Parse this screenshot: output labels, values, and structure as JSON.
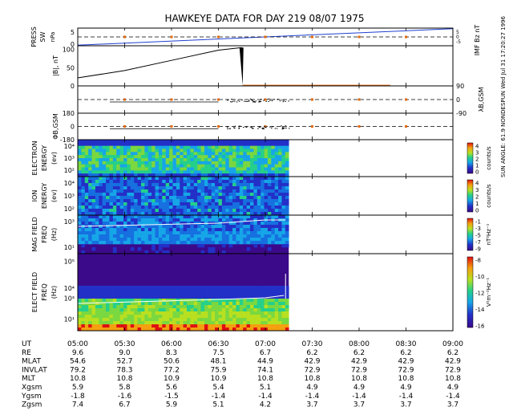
{
  "title": "HAWKEYE DATA FOR DAY 219 08/07 1975",
  "side_text": "SUN ANGLE: 61.9 NONDESPUN    Wed Jul 31 17:20:27 1996",
  "colors": {
    "press": "#1f3fd0",
    "imf": "#e06a10",
    "line": "#000000",
    "spec_bg": "#3b0a8a"
  },
  "panels": [
    {
      "id": "press",
      "left_label_lines": [
        "PRESS",
        "SW"
      ],
      "left_unit": "nPa",
      "right_label_lines": [
        "IMF Bz nT"
      ],
      "right_ticks": [
        "5",
        "0",
        "-5"
      ],
      "yticks": [
        "5",
        "0"
      ],
      "ylim": [
        0,
        6
      ]
    },
    {
      "id": "ibi",
      "left_label_lines": [
        "|B|, nT"
      ],
      "yticks": [
        "100",
        "50",
        "0"
      ],
      "ylim": [
        0,
        110
      ]
    },
    {
      "id": "lambda",
      "right_label_lines": [
        "λB,GSM"
      ],
      "right_ticks": [
        "90",
        "0",
        "-90"
      ],
      "ylim": [
        -90,
        90
      ]
    },
    {
      "id": "phi",
      "left_label_lines": [
        "ΦB,GSM"
      ],
      "yticks": [
        "180",
        "0",
        "-180"
      ],
      "ylim": [
        -180,
        180
      ]
    },
    {
      "id": "electron",
      "left_label_lines": [
        "ELECTRON",
        "ENERGY",
        "(ev)"
      ],
      "yticks": [
        "10⁴",
        "10³",
        "10²"
      ],
      "cbar_ticks": [
        "4",
        "3",
        "2",
        "1",
        "0"
      ],
      "cbar_unit": "counts/s"
    },
    {
      "id": "ion",
      "left_label_lines": [
        "ION",
        "ENERGY",
        "(ev)"
      ],
      "yticks": [
        "10⁴",
        "10³",
        "10²"
      ],
      "cbar_ticks": [
        "4",
        "3",
        "2",
        "1",
        "0"
      ],
      "cbar_unit": "counts/s"
    },
    {
      "id": "mag",
      "left_label_lines": [
        "MAG FIELD",
        "FREQ",
        "(Hz)"
      ],
      "yticks": [
        "10³",
        "10¹"
      ],
      "cbar_ticks": [
        "-1",
        "-3",
        "-5",
        "-7",
        "-9"
      ],
      "cbar_unit": "nT²Hz⁻¹"
    },
    {
      "id": "elect",
      "left_label_lines": [
        "ELECT FIELD",
        "FREQ",
        "(Hz)"
      ],
      "yticks": [
        "10⁵",
        "10⁴",
        "10³",
        "10¹"
      ],
      "cbar_ticks": [
        "-8",
        "-10",
        "-12",
        "-14",
        "-16"
      ],
      "cbar_unit": "V²m⁻²Hz⁻¹"
    }
  ],
  "chart_data": {
    "type": "table",
    "x_label": "UT",
    "x": [
      "05:00",
      "05:30",
      "06:00",
      "06:30",
      "07:00",
      "07:30",
      "08:00",
      "08:30",
      "09:00"
    ],
    "ephemeris": [
      {
        "label": "RE",
        "values": [
          "9.6",
          "9.0",
          "8.3",
          "7.5",
          "6.7",
          "6.2",
          "6.2",
          "6.2",
          "6.2"
        ]
      },
      {
        "label": "MLAT",
        "values": [
          "54.6",
          "52.7",
          "50.6",
          "48.1",
          "44.9",
          "42.9",
          "42.9",
          "42.9",
          "42.9"
        ]
      },
      {
        "label": "INVLAT",
        "values": [
          "79.2",
          "78.3",
          "77.2",
          "75.9",
          "74.1",
          "72.9",
          "72.9",
          "72.9",
          "72.9"
        ]
      },
      {
        "label": "MLT",
        "values": [
          "10.8",
          "10.8",
          "10.9",
          "10.9",
          "10.8",
          "10.8",
          "10.8",
          "10.8",
          "10.8"
        ]
      },
      {
        "label": "Xgsm",
        "values": [
          "5.9",
          "5.8",
          "5.6",
          "5.4",
          "5.1",
          "4.9",
          "4.9",
          "4.9",
          "4.9"
        ]
      },
      {
        "label": "Ygsm",
        "values": [
          "-1.8",
          "-1.6",
          "-1.5",
          "-1.4",
          "-1.4",
          "-1.4",
          "-1.4",
          "-1.4",
          "-1.4"
        ]
      },
      {
        "label": "Zgsm",
        "values": [
          "7.4",
          "6.7",
          "5.9",
          "5.1",
          "4.2",
          "3.7",
          "3.7",
          "3.7",
          "3.7"
        ]
      }
    ],
    "data_end_ut": "07:15",
    "ibi_series": {
      "ut": [
        "05:00",
        "05:30",
        "06:00",
        "06:30",
        "06:45"
      ],
      "values": [
        22,
        42,
        70,
        98,
        105
      ]
    },
    "press_series": {
      "ut": [
        "05:00",
        "09:00"
      ],
      "values": [
        0.2,
        5.8
      ]
    },
    "imf_bz_series": {
      "ut": [
        "05:00",
        "09:00"
      ],
      "values": [
        0,
        0
      ]
    }
  }
}
